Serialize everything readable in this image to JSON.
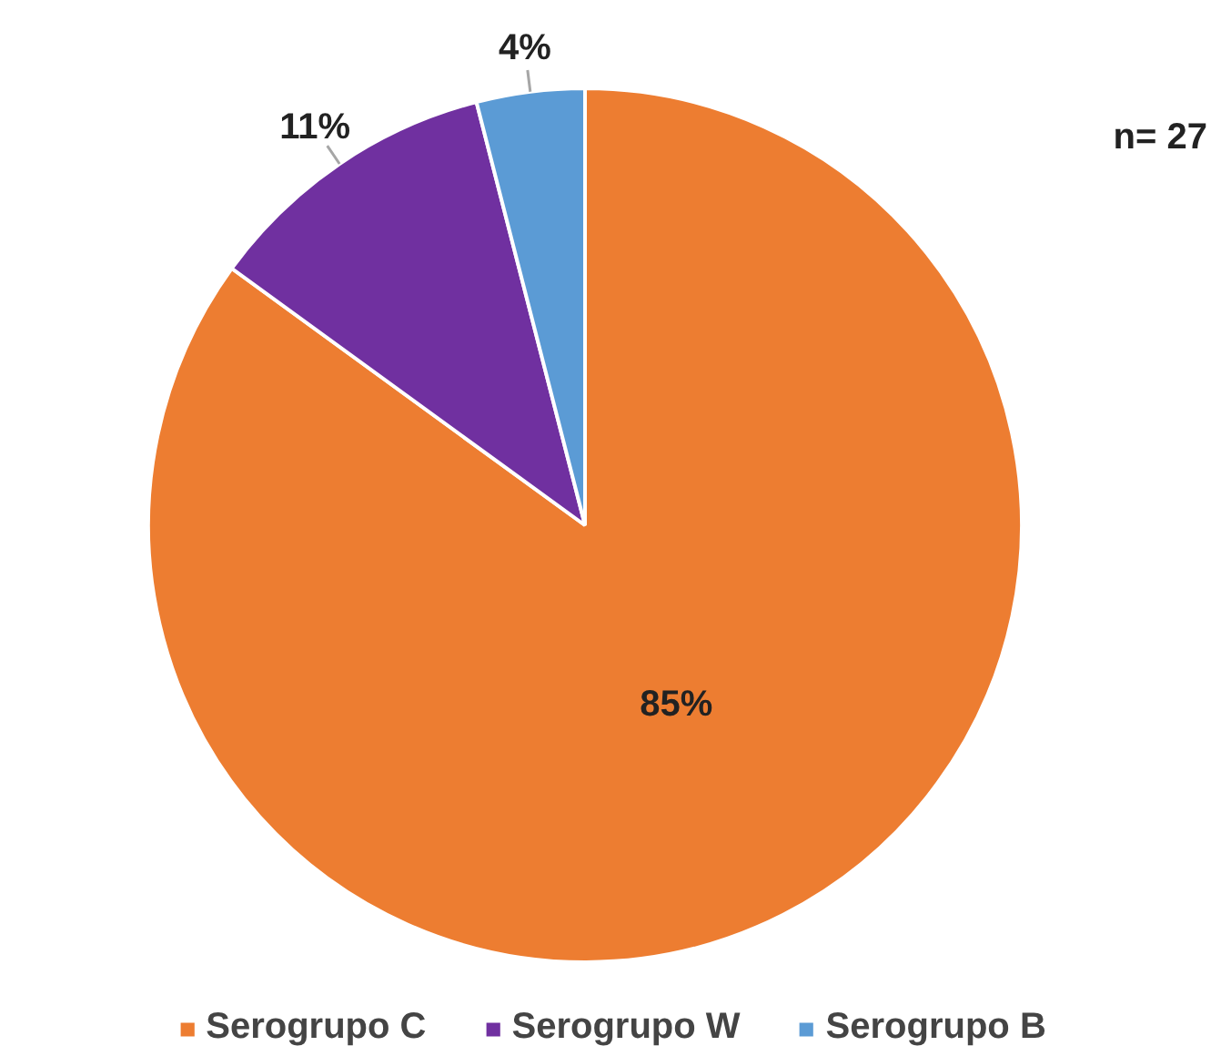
{
  "chart_data": {
    "type": "pie",
    "categories": [
      "Serogrupo C",
      "Serogrupo W",
      "Serogrupo B"
    ],
    "values": [
      85,
      11,
      4
    ],
    "colors": [
      "#ed7d31",
      "#7030a0",
      "#5b9bd5"
    ],
    "value_labels": [
      "85%",
      "11%",
      "4%"
    ],
    "annotations": [
      "n= 27"
    ],
    "legend": "bottom"
  }
}
